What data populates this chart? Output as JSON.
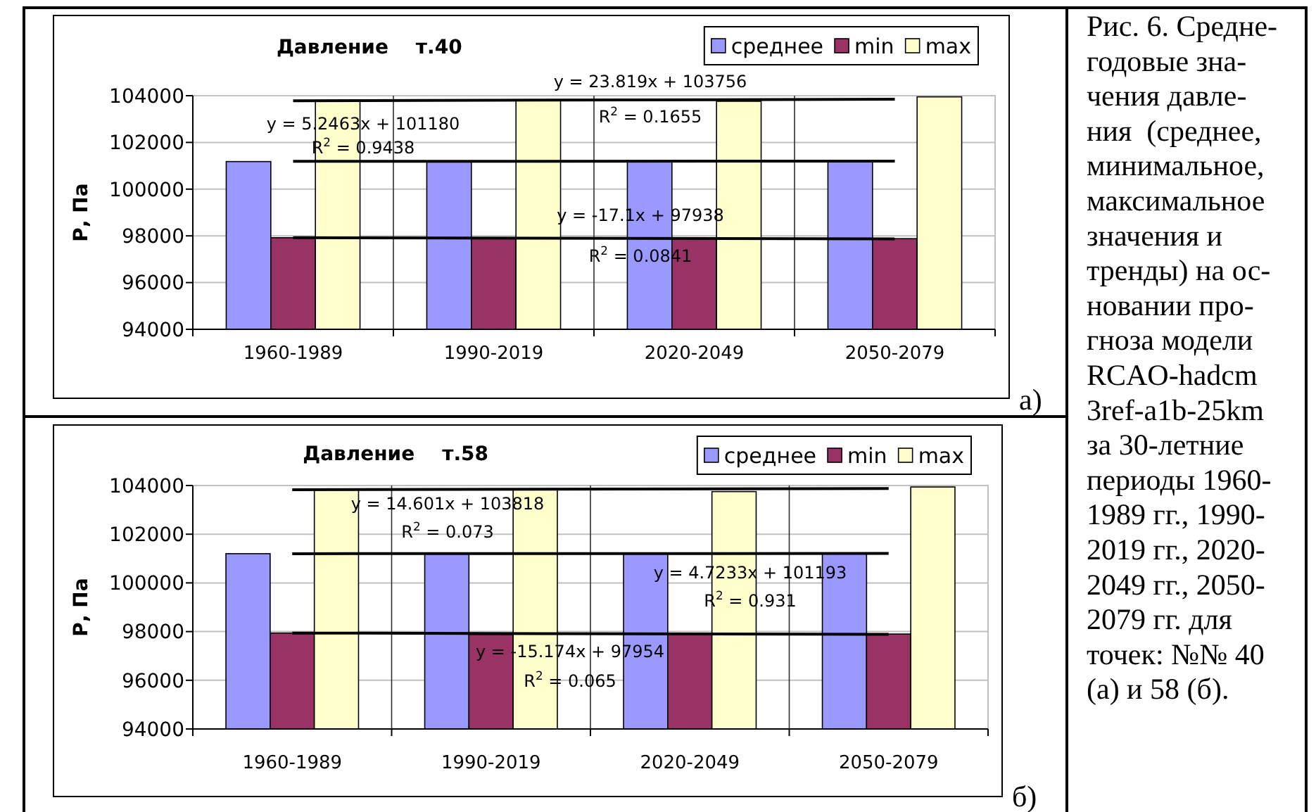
{
  "chart_data": [
    {
      "type": "bar",
      "title": "Давление    т.40",
      "ylabel": "Р, Па",
      "categories": [
        "1960-1989",
        "1990-2019",
        "2020-2049",
        "2050-2079"
      ],
      "series": [
        {
          "name": "среднее",
          "color": "#9999ff",
          "values": [
            101180,
            101190,
            101190,
            101200
          ]
        },
        {
          "name": "min",
          "color": "#993366",
          "values": [
            97920,
            97880,
            97900,
            97880
          ]
        },
        {
          "name": "max",
          "color": "#ffffcc",
          "values": [
            103800,
            103800,
            103760,
            103950
          ]
        },
        {
          "type": "line",
          "color": "#000000",
          "x": [
            "1960-1989",
            "2050-2079"
          ],
          "values": [
            101190,
            101200
          ]
        },
        {
          "type": "line",
          "color": "#000000",
          "x": [
            "1960-1989",
            "2050-2079"
          ],
          "values": [
            97920,
            97870
          ]
        },
        {
          "type": "line",
          "color": "#000000",
          "x": [
            "1960-1989",
            "2050-2079"
          ],
          "values": [
            103780,
            103850
          ]
        }
      ],
      "ylim": [
        94000,
        104000
      ],
      "yticks": [
        94000,
        96000,
        98000,
        100000,
        102000,
        104000
      ],
      "grid": true,
      "legend": "top right",
      "annotations": [
        "y = 5.2463x + 101180\nR$^{2}$ = 0.9438",
        "y = 23.819x + 103756\nR$^{2}$ = 0.1655",
        "y = -17.1x + 97938\nR$^{2}$ = 0.0841",
        "а)"
      ]
    },
    {
      "type": "bar",
      "title": "Давление    т.58",
      "ylabel": "Р, Па",
      "categories": [
        "1960-1989",
        "1990-2019",
        "2020-2049",
        "2050-2079"
      ],
      "series": [
        {
          "name": "среднее",
          "color": "#9999ff",
          "values": [
            101200,
            101200,
            101200,
            101210
          ]
        },
        {
          "name": "min",
          "color": "#993366",
          "values": [
            97940,
            97880,
            97900,
            97900
          ]
        },
        {
          "name": "max",
          "color": "#ffffcc",
          "values": [
            103840,
            103830,
            103750,
            103940
          ]
        },
        {
          "type": "line",
          "color": "#000000",
          "x": [
            "1960-1989",
            "2050-2079"
          ],
          "values": [
            101200,
            101210
          ]
        },
        {
          "type": "line",
          "color": "#000000",
          "x": [
            "1960-1989",
            "2050-2079"
          ],
          "values": [
            97940,
            97890
          ]
        },
        {
          "type": "line",
          "color": "#000000",
          "x": [
            "1960-1989",
            "2050-2079"
          ],
          "values": [
            103830,
            103880
          ]
        }
      ],
      "ylim": [
        94000,
        104000
      ],
      "yticks": [
        94000,
        96000,
        98000,
        100000,
        102000,
        104000
      ],
      "grid": true,
      "legend": "top right",
      "annotations": [
        "y = 14.601x + 103818\nR$^{2}$ = 0.073",
        "y = 4.7233x + 101193\nR$^{2}$ = 0.931",
        "y = -15.174x + 97954\nR$^{2}$ = 0.065",
        "б)"
      ]
    },
    {
      "type": "other",
      "annotations": [
        "Рис. 6. Средне-\nгодовые зна-\nчения давле-\nния  (среднее,\nминимальное,\nмаксимальное\nзначения и\nтренды) на ос-\nновании про-\nгноза модели\nRCAO-hadcm\n3ref-a1b-25km\nза 30-летние\nпериоды 1960-\n1989 гг., 1990-\n2019 гг., 2020-\n2049 гг., 2050-\n2079 гг. для\nточек: №№ 40\n(а) и 58 (б)."
      ]
    }
  ]
}
